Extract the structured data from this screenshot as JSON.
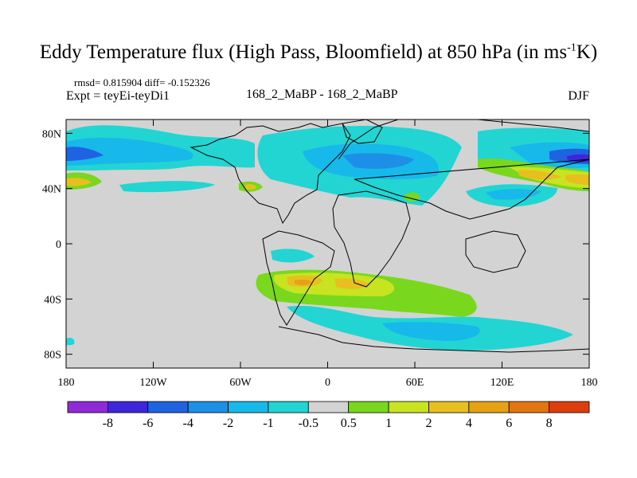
{
  "title": {
    "main": "Eddy Temperature flux (High Pass, Bloomfield) at 850 hPa (in ms",
    "sup": "-1",
    "unit_tail": "K)"
  },
  "subtitle": {
    "rmsd": "rmsd= 0.815904 diff= -0.152326",
    "expt": "Expt = teyEi-teyDi1",
    "experiments": "168_2_MaBP - 168_2_MaBP",
    "season": "DJF"
  },
  "map": {
    "projection": "cylindrical equidistant",
    "lon_range": [
      -180,
      180
    ],
    "lat_range": [
      -90,
      90
    ],
    "background_color": "#d3d3d3",
    "lat_ticks": [
      {
        "value": 80,
        "label": "80N"
      },
      {
        "value": 40,
        "label": "40N"
      },
      {
        "value": 0,
        "label": "0"
      },
      {
        "value": -40,
        "label": "40S"
      },
      {
        "value": -80,
        "label": "80S"
      }
    ],
    "lon_ticks": [
      {
        "value": -180,
        "label": "180"
      },
      {
        "value": -120,
        "label": "120W"
      },
      {
        "value": -60,
        "label": "60W"
      },
      {
        "value": 0,
        "label": "0"
      },
      {
        "value": 60,
        "label": "60E"
      },
      {
        "value": 120,
        "label": "120E"
      },
      {
        "value": 180,
        "label": "180"
      }
    ]
  },
  "colorbar": {
    "colors": [
      "#8f2bd6",
      "#3d27d8",
      "#1f63e0",
      "#1e8fe6",
      "#16b9ea",
      "#22d5d3",
      "#d3d3d3",
      "#79d81e",
      "#c8e421",
      "#e7c020",
      "#e6a215",
      "#e27411",
      "#de3e0c"
    ],
    "labels": [
      "-8",
      "-6",
      "-4",
      "-2",
      "-1",
      "-0.5",
      "0.5",
      "1",
      "2",
      "4",
      "6",
      "8"
    ]
  }
}
